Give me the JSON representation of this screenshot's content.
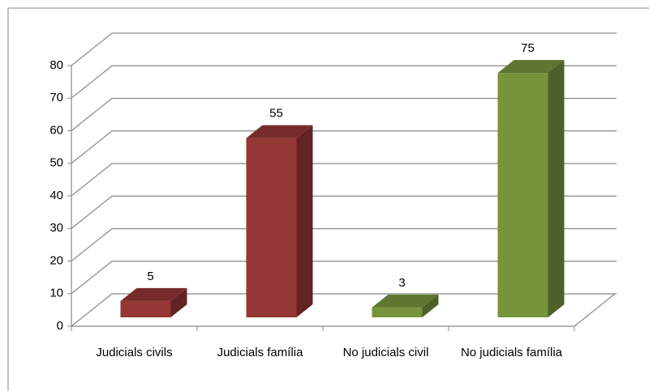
{
  "chart_data": {
    "type": "bar3d",
    "categories": [
      "Judicials civils",
      "Judicials família",
      "No judicials civil",
      "No judicials família"
    ],
    "values": [
      5,
      55,
      3,
      75
    ],
    "colors": [
      "#953735",
      "#953735",
      "#77933c",
      "#77933c"
    ],
    "ylim": [
      0,
      80
    ],
    "yticks": [
      0,
      10,
      20,
      30,
      40,
      50,
      60,
      70,
      80
    ],
    "grid": true
  }
}
